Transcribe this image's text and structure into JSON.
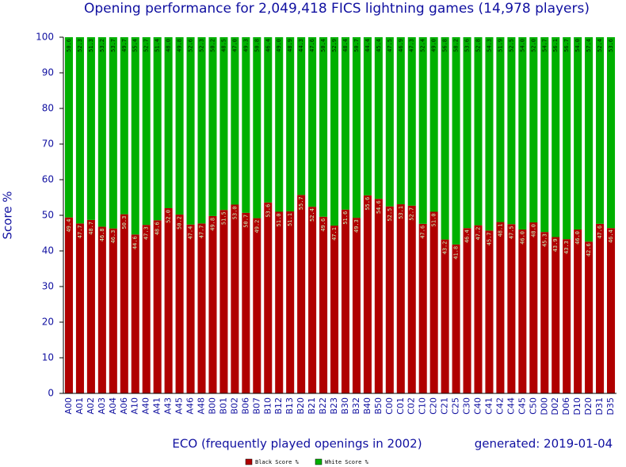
{
  "chart_data": {
    "type": "stacked_bar",
    "title": "Opening performance for 2,049,418 FICS lightning games (14,978 players)",
    "y_label": "Score %",
    "x_label": "ECO (frequently played openings in 2002)",
    "annotation": "generated: 2019-01-04",
    "categories": [
      "A00",
      "A01",
      "A02",
      "A03",
      "A04",
      "A06",
      "A10",
      "A40",
      "A41",
      "A43",
      "A45",
      "A46",
      "A48",
      "B00",
      "B01",
      "B02",
      "B06",
      "B07",
      "B10",
      "B12",
      "B13",
      "B20",
      "B21",
      "B22",
      "B23",
      "B30",
      "B32",
      "B40",
      "B50",
      "C00",
      "C01",
      "C02",
      "C10",
      "C20",
      "C21",
      "C25",
      "C30",
      "C40",
      "C41",
      "C42",
      "C44",
      "C45",
      "C50",
      "D00",
      "D02",
      "D06",
      "D10",
      "D20",
      "D31",
      "D35"
    ],
    "series": [
      {
        "name": "Black Score %",
        "color": "#b00000",
        "values": [
          49.4,
          47.7,
          48.7,
          46.8,
          46.3,
          50.3,
          44.6,
          47.3,
          48.6,
          52.0,
          50.2,
          47.4,
          47.7,
          49.8,
          51.5,
          53.0,
          50.7,
          49.2,
          53.6,
          51.0,
          51.1,
          55.7,
          52.4,
          49.6,
          47.1,
          51.6,
          49.3,
          55.6,
          54.6,
          52.5,
          53.1,
          52.7,
          47.6,
          51.0,
          43.2,
          41.8,
          46.4,
          47.2,
          45.7,
          48.1,
          47.5,
          46.0,
          48.0,
          45.3,
          43.9,
          43.3,
          46.0,
          42.6,
          47.6,
          46.4
        ],
        "value_labels": [
          "49.4",
          "47.7",
          "48.7",
          "46.8",
          "46.3",
          "50.3",
          "44.6",
          "47.3",
          "48.6",
          "52.0",
          "50.2",
          "47.4",
          "47.7",
          "49.8",
          "51.5",
          "53.0",
          "50.7",
          "49.2",
          "53.6",
          "51.0",
          "51.1",
          "55.7",
          "52.4",
          "49.6",
          "47.1",
          "51.6",
          "49.3",
          "55.6",
          "54.6",
          "52.5",
          "53.1",
          "52.7",
          "47.6",
          "51.0",
          "43.2",
          "41.8",
          "46.4",
          "47.2",
          "45.7",
          "48.1",
          "47.5",
          "46.0",
          "48.0",
          "45.3",
          "43.9",
          "43.3",
          "46.0",
          "42.6",
          "47.6",
          "46.4"
        ]
      },
      {
        "name": "White Score %",
        "color": "#00b000",
        "values": [
          50.6,
          52.3,
          51.3,
          53.2,
          53.7,
          49.7,
          55.4,
          52.7,
          51.4,
          48.0,
          49.8,
          52.6,
          52.3,
          50.2,
          48.5,
          47.0,
          49.3,
          50.8,
          46.4,
          49.0,
          48.9,
          44.3,
          47.6,
          50.4,
          52.9,
          48.4,
          50.7,
          44.4,
          45.4,
          47.5,
          46.9,
          47.3,
          52.4,
          49.0,
          56.8,
          58.2,
          53.6,
          52.8,
          54.3,
          51.9,
          52.5,
          54.0,
          52.0,
          54.7,
          56.1,
          56.7,
          54.0,
          57.4,
          52.4,
          53.6
        ],
        "value_labels": [
          "50.6",
          "52.3",
          "51.3",
          "53.2",
          "53.7",
          "49.7",
          "55.4",
          "52.7",
          "51.4",
          "48.0",
          "49.8",
          "52.6",
          "52.3",
          "50.2",
          "48.5",
          "47.0",
          "49.3",
          "50.8",
          "46.4",
          "49.0",
          "48.9",
          "44.3",
          "47.6",
          "50.4",
          "52.9",
          "48.4",
          "50.7",
          "44.4",
          "45.4",
          "47.5",
          "46.9",
          "47.3",
          "52.4",
          "49.0",
          "56.8",
          "58.2",
          "53.6",
          "52.8",
          "54.3",
          "51.9",
          "52.5",
          "54.0",
          "52.0",
          "54.7",
          "56.1",
          "56.7",
          "54.0",
          "57.4",
          "52.4",
          "53.6"
        ]
      }
    ],
    "ylim": [
      0,
      100
    ],
    "yticks": [
      0,
      10,
      20,
      30,
      40,
      50,
      60,
      70,
      80,
      90,
      100
    ]
  }
}
